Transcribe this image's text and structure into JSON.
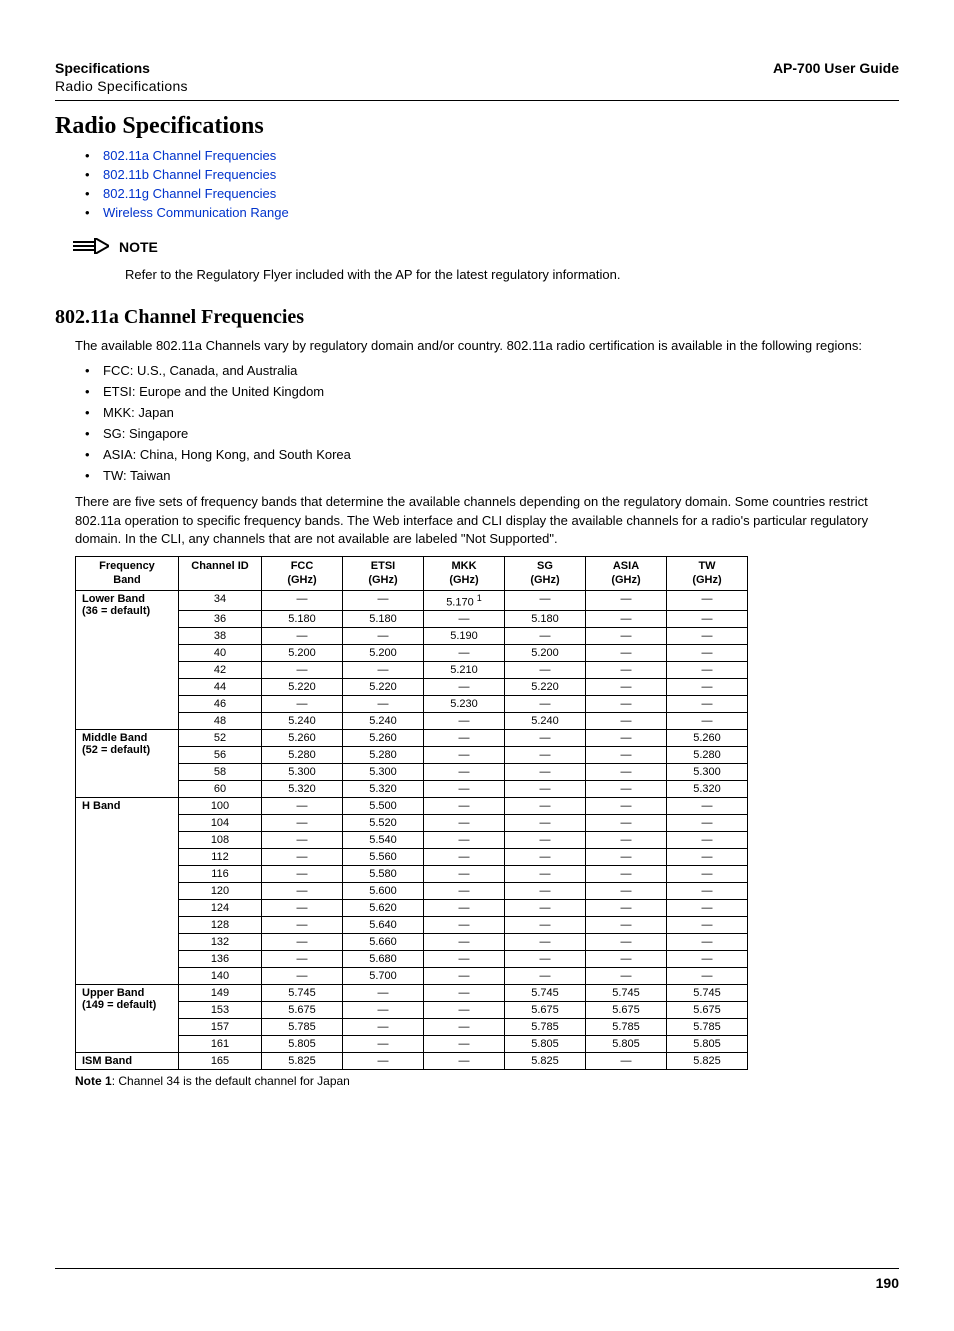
{
  "header": {
    "left_title": "Specifications",
    "left_sub": "Radio Specifications",
    "right": "AP-700 User Guide"
  },
  "title": "Radio Specifications",
  "links": [
    "802.11a Channel Frequencies",
    "802.11b Channel Frequencies",
    "802.11g Channel Frequencies",
    "Wireless Communication Range"
  ],
  "note": {
    "label": "NOTE",
    "text": "Refer to the Regulatory Flyer included with the AP for the latest regulatory information."
  },
  "section_a": {
    "heading": "802.11a Channel Frequencies",
    "intro": "The available 802.11a Channels vary by regulatory domain and/or country. 802.11a radio certification is available in the following regions:",
    "regions": [
      "FCC: U.S., Canada, and Australia",
      "ETSI: Europe and the United Kingdom",
      "MKK: Japan",
      "SG: Singapore",
      "ASIA: China, Hong Kong, and South Korea",
      "TW: Taiwan"
    ],
    "para2": "There are five sets of frequency bands that determine the available channels depending on the regulatory domain. Some countries restrict 802.11a operation to specific frequency bands. The Web interface and CLI display the available channels for a radio's particular regulatory domain. In the CLI, any channels that are not available are labeled \"Not Supported\"."
  },
  "table": {
    "columns": [
      {
        "l1": "Frequency",
        "l2": "Band"
      },
      {
        "l1": "Channel ID",
        "l2": ""
      },
      {
        "l1": "FCC",
        "l2": "(GHz)"
      },
      {
        "l1": "ETSI",
        "l2": "(GHz)"
      },
      {
        "l1": "MKK",
        "l2": "(GHz)"
      },
      {
        "l1": "SG",
        "l2": "(GHz)"
      },
      {
        "l1": "ASIA",
        "l2": "(GHz)"
      },
      {
        "l1": "TW",
        "l2": "(GHz)"
      }
    ],
    "groups": [
      {
        "band_l1": "Lower Band",
        "band_l2": "(36 = default)",
        "rows": [
          {
            "ch": "34",
            "v": [
              "—",
              "—",
              "5.170 ¹",
              "—",
              "—",
              "—"
            ]
          },
          {
            "ch": "36",
            "v": [
              "5.180",
              "5.180",
              "—",
              "5.180",
              "—",
              "—"
            ]
          },
          {
            "ch": "38",
            "v": [
              "—",
              "—",
              "5.190",
              "—",
              "—",
              "—"
            ]
          },
          {
            "ch": "40",
            "v": [
              "5.200",
              "5.200",
              "—",
              "5.200",
              "—",
              "—"
            ]
          },
          {
            "ch": "42",
            "v": [
              "—",
              "—",
              "5.210",
              "—",
              "—",
              "—"
            ]
          },
          {
            "ch": "44",
            "v": [
              "5.220",
              "5.220",
              "—",
              "5.220",
              "—",
              "—"
            ]
          },
          {
            "ch": "46",
            "v": [
              "—",
              "—",
              "5.230",
              "—",
              "—",
              "—"
            ]
          },
          {
            "ch": "48",
            "v": [
              "5.240",
              "5.240",
              "—",
              "5.240",
              "—",
              "—"
            ]
          }
        ]
      },
      {
        "band_l1": "Middle Band",
        "band_l2": "(52 = default)",
        "rows": [
          {
            "ch": "52",
            "v": [
              "5.260",
              "5.260",
              "—",
              "—",
              "—",
              "5.260"
            ]
          },
          {
            "ch": "56",
            "v": [
              "5.280",
              "5.280",
              "—",
              "—",
              "—",
              "5.280"
            ]
          },
          {
            "ch": "58",
            "v": [
              "5.300",
              "5.300",
              "—",
              "—",
              "—",
              "5.300"
            ]
          },
          {
            "ch": "60",
            "v": [
              "5.320",
              "5.320",
              "—",
              "—",
              "—",
              "5.320"
            ]
          }
        ]
      },
      {
        "band_l1": "H Band",
        "band_l2": "",
        "rows": [
          {
            "ch": "100",
            "v": [
              "—",
              "5.500",
              "—",
              "—",
              "—",
              "—"
            ]
          },
          {
            "ch": "104",
            "v": [
              "—",
              "5.520",
              "—",
              "—",
              "—",
              "—"
            ]
          },
          {
            "ch": "108",
            "v": [
              "—",
              "5.540",
              "—",
              "—",
              "—",
              "—"
            ]
          },
          {
            "ch": "112",
            "v": [
              "—",
              "5.560",
              "—",
              "—",
              "—",
              "—"
            ]
          },
          {
            "ch": "116",
            "v": [
              "—",
              "5.580",
              "—",
              "—",
              "—",
              "—"
            ]
          },
          {
            "ch": "120",
            "v": [
              "—",
              "5.600",
              "—",
              "—",
              "—",
              "—"
            ]
          },
          {
            "ch": "124",
            "v": [
              "—",
              "5.620",
              "—",
              "—",
              "—",
              "—"
            ]
          },
          {
            "ch": "128",
            "v": [
              "—",
              "5.640",
              "—",
              "—",
              "—",
              "—"
            ]
          },
          {
            "ch": "132",
            "v": [
              "—",
              "5.660",
              "—",
              "—",
              "—",
              "—"
            ]
          },
          {
            "ch": "136",
            "v": [
              "—",
              "5.680",
              "—",
              "—",
              "—",
              "—"
            ]
          },
          {
            "ch": "140",
            "v": [
              "—",
              "5.700",
              "—",
              "—",
              "—",
              "—"
            ]
          }
        ]
      },
      {
        "band_l1": "Upper Band",
        "band_l2": "(149 = default)",
        "rows": [
          {
            "ch": "149",
            "v": [
              "5.745",
              "—",
              "—",
              "5.745",
              "5.745",
              "5.745"
            ]
          },
          {
            "ch": "153",
            "v": [
              "5.675",
              "—",
              "—",
              "5.675",
              "5.675",
              "5.675"
            ]
          },
          {
            "ch": "157",
            "v": [
              "5.785",
              "—",
              "—",
              "5.785",
              "5.785",
              "5.785"
            ]
          },
          {
            "ch": "161",
            "v": [
              "5.805",
              "—",
              "—",
              "5.805",
              "5.805",
              "5.805"
            ]
          }
        ]
      },
      {
        "band_l1": "ISM Band",
        "band_l2": "",
        "rows": [
          {
            "ch": "165",
            "v": [
              "5.825",
              "—",
              "—",
              "5.825",
              "—",
              "5.825"
            ]
          }
        ]
      }
    ]
  },
  "footnote": {
    "bold": "Note 1",
    "rest": ": Channel 34 is the default channel for Japan"
  },
  "page_number": "190"
}
